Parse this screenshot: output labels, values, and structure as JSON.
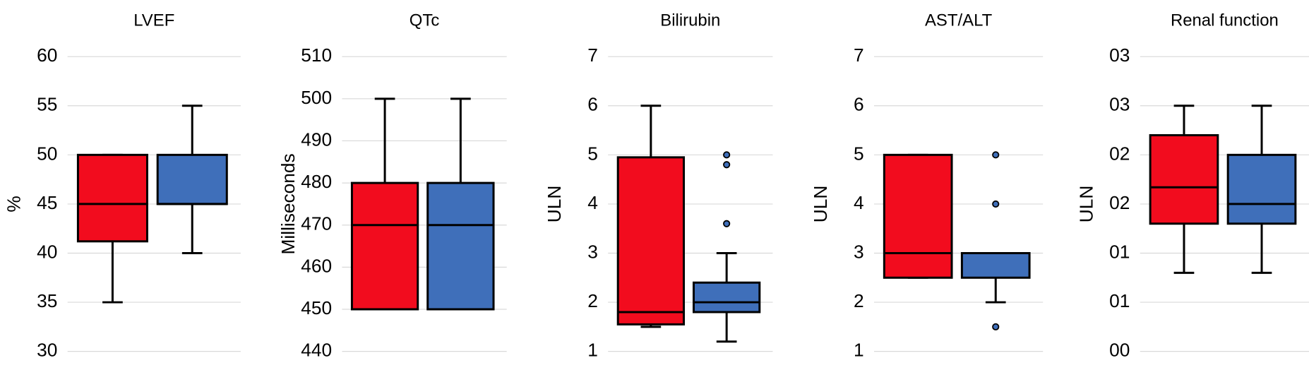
{
  "chart_data": [
    {
      "type": "box",
      "title": "LVEF",
      "ylabel": "%",
      "ylim": [
        30,
        60
      ],
      "yticks": [
        30,
        35,
        40,
        45,
        50,
        55,
        60
      ],
      "grid": true,
      "series": [
        {
          "color": "#f20c1e",
          "min": 35,
          "q1": 41.2,
          "median": 45,
          "q3": 50,
          "max": 50,
          "outliers": []
        },
        {
          "color": "#3f6fba",
          "min": 40,
          "q1": 45,
          "median": 45,
          "q3": 50,
          "max": 55,
          "outliers": []
        }
      ]
    },
    {
      "type": "box",
      "title": "QTc",
      "ylabel": "Milliseconds",
      "ylim": [
        440,
        510
      ],
      "yticks": [
        440,
        450,
        460,
        470,
        480,
        490,
        500,
        510
      ],
      "grid": true,
      "series": [
        {
          "color": "#f20c1e",
          "min": 450,
          "q1": 450,
          "median": 470,
          "q3": 480,
          "max": 500,
          "outliers": []
        },
        {
          "color": "#3f6fba",
          "min": 450,
          "q1": 450,
          "median": 470,
          "q3": 480,
          "max": 500,
          "outliers": []
        }
      ]
    },
    {
      "type": "box",
      "title": "Bilirubin",
      "ylabel": "ULN",
      "ylim": [
        1,
        7
      ],
      "yticks": [
        1,
        2,
        3,
        4,
        5,
        6,
        7
      ],
      "grid": true,
      "series": [
        {
          "color": "#f20c1e",
          "min": 1.5,
          "q1": 1.55,
          "median": 1.8,
          "q3": 4.95,
          "max": 6,
          "outliers": []
        },
        {
          "color": "#3f6fba",
          "min": 1.2,
          "q1": 1.8,
          "median": 2,
          "q3": 2.4,
          "max": 3,
          "outliers": [
            3.6,
            4.8,
            5
          ]
        }
      ]
    },
    {
      "type": "box",
      "title": "AST/ALT",
      "ylabel": "ULN",
      "ylim": [
        1,
        7
      ],
      "yticks": [
        1,
        2,
        3,
        4,
        5,
        6,
        7
      ],
      "grid": true,
      "series": [
        {
          "color": "#f20c1e",
          "min": 2.5,
          "q1": 2.5,
          "median": 3,
          "q3": 5,
          "max": 5,
          "outliers": []
        },
        {
          "color": "#3f6fba",
          "min": 2,
          "q1": 2.5,
          "median": 3,
          "q3": 3,
          "max": 3,
          "outliers": [
            1.5,
            4,
            5
          ]
        }
      ]
    },
    {
      "type": "box",
      "title": "Renal  function",
      "ylabel": "ULN",
      "ylim": [
        0,
        3
      ],
      "yticks": [
        {
          "value": 0,
          "label": "00"
        },
        {
          "value": 0.5,
          "label": "01"
        },
        {
          "value": 1,
          "label": "01"
        },
        {
          "value": 1.5,
          "label": "02"
        },
        {
          "value": 2,
          "label": "02"
        },
        {
          "value": 2.5,
          "label": "03"
        },
        {
          "value": 3,
          "label": "03"
        }
      ],
      "grid": true,
      "series": [
        {
          "color": "#f20c1e",
          "min": 0.8,
          "q1": 1.3,
          "median": 1.67,
          "q3": 2.2,
          "max": 2.5,
          "outliers": []
        },
        {
          "color": "#3f6fba",
          "min": 0.8,
          "q1": 1.3,
          "median": 1.5,
          "q3": 2,
          "max": 2.5,
          "outliers": []
        }
      ]
    }
  ]
}
